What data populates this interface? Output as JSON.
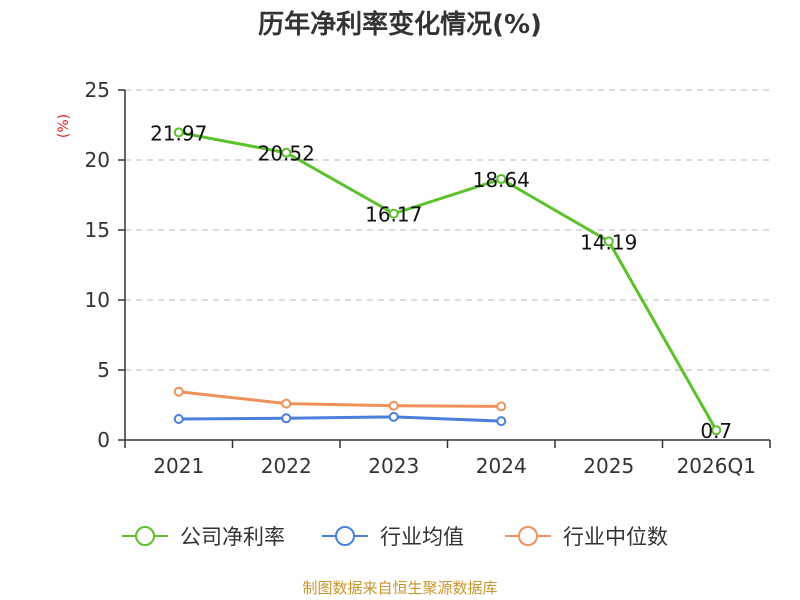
{
  "chart_data": {
    "type": "line",
    "title": "历年净利率变化情况(%)",
    "ylabel": "(%)",
    "categories": [
      "2021",
      "2022",
      "2023",
      "2024",
      "2025",
      "2026Q1"
    ],
    "ylim": [
      0,
      25
    ],
    "yticks": [
      0,
      5,
      10,
      15,
      20,
      25
    ],
    "grid": true,
    "legend_position": "bottom",
    "series": [
      {
        "name": "公司净利率",
        "color": "#5cc12a",
        "values": [
          21.97,
          20.52,
          16.17,
          18.64,
          14.19,
          0.7
        ],
        "labels": [
          "21.97",
          "20.52",
          "16.17",
          "18.64",
          "14.19",
          "0.7"
        ]
      },
      {
        "name": "行业均值",
        "color": "#4a7fdc",
        "values": [
          1.5,
          1.55,
          1.65,
          1.35,
          null,
          null
        ]
      },
      {
        "name": "行业中位数",
        "color": "#f0905a",
        "values": [
          3.45,
          2.6,
          2.45,
          2.4,
          null,
          null
        ]
      }
    ],
    "source": "制图数据来自恒生聚源数据库"
  }
}
